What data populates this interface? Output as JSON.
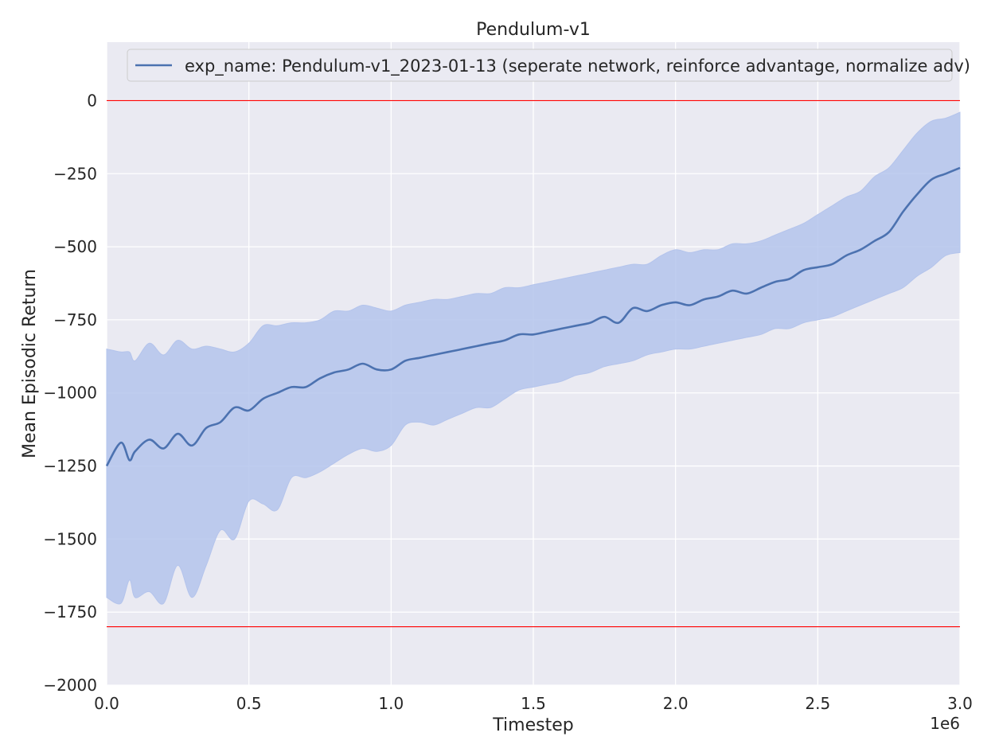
{
  "chart_data": {
    "type": "line",
    "title": "Pendulum-v1",
    "xlabel": "Timestep",
    "ylabel": "Mean Episodic Return",
    "x_offset_label": "1e6",
    "xlim": [
      0,
      3.0
    ],
    "ylim": [
      -2000,
      200
    ],
    "xticks": [
      "0.0",
      "0.5",
      "1.0",
      "1.5",
      "2.0",
      "2.5",
      "3.0"
    ],
    "yticks": [
      "0",
      "−250",
      "−500",
      "−750",
      "−1000",
      "−1250",
      "−1500",
      "−1750",
      "−2000"
    ],
    "grid": true,
    "legend_position": "top-right",
    "colors": {
      "background": "#eaeaf2",
      "line": "#4c72b0",
      "band": "#b4c4ec",
      "reference": "#ff0000"
    },
    "reference_lines": [
      0,
      -1800
    ],
    "series": [
      {
        "name": "exp_name: Pendulum-v1_2023-01-13 (seperate network, reinforce advantage, normalize adv)",
        "x": [
          0.0,
          0.05,
          0.08,
          0.1,
          0.15,
          0.2,
          0.25,
          0.3,
          0.35,
          0.4,
          0.45,
          0.5,
          0.55,
          0.6,
          0.65,
          0.7,
          0.75,
          0.8,
          0.85,
          0.9,
          0.95,
          1.0,
          1.05,
          1.1,
          1.15,
          1.2,
          1.25,
          1.3,
          1.35,
          1.4,
          1.45,
          1.5,
          1.55,
          1.6,
          1.65,
          1.7,
          1.75,
          1.8,
          1.85,
          1.9,
          1.95,
          2.0,
          2.05,
          2.1,
          2.15,
          2.2,
          2.25,
          2.3,
          2.35,
          2.4,
          2.45,
          2.5,
          2.55,
          2.6,
          2.65,
          2.7,
          2.75,
          2.8,
          2.85,
          2.9,
          2.95,
          3.0
        ],
        "mean": [
          -1250,
          -1170,
          -1230,
          -1200,
          -1160,
          -1190,
          -1140,
          -1180,
          -1120,
          -1100,
          -1050,
          -1060,
          -1020,
          -1000,
          -980,
          -980,
          -950,
          -930,
          -920,
          -900,
          -920,
          -920,
          -890,
          -880,
          -870,
          -860,
          -850,
          -840,
          -830,
          -820,
          -800,
          -800,
          -790,
          -780,
          -770,
          -760,
          -740,
          -760,
          -710,
          -720,
          -700,
          -690,
          -700,
          -680,
          -670,
          -650,
          -660,
          -640,
          -620,
          -610,
          -580,
          -570,
          -560,
          -530,
          -510,
          -480,
          -450,
          -380,
          -320,
          -270,
          -250,
          -230
        ],
        "upper": [
          -850,
          -860,
          -860,
          -890,
          -830,
          -870,
          -820,
          -850,
          -840,
          -850,
          -860,
          -830,
          -770,
          -770,
          -760,
          -760,
          -750,
          -720,
          -720,
          -700,
          -710,
          -720,
          -700,
          -690,
          -680,
          -680,
          -670,
          -660,
          -660,
          -640,
          -640,
          -630,
          -620,
          -610,
          -600,
          -590,
          -580,
          -570,
          -560,
          -560,
          -530,
          -510,
          -520,
          -510,
          -510,
          -490,
          -490,
          -480,
          -460,
          -440,
          -420,
          -390,
          -360,
          -330,
          -310,
          -260,
          -230,
          -170,
          -110,
          -70,
          -60,
          -40
        ],
        "lower": [
          -1700,
          -1720,
          -1640,
          -1700,
          -1680,
          -1720,
          -1590,
          -1700,
          -1590,
          -1470,
          -1500,
          -1370,
          -1380,
          -1400,
          -1290,
          -1290,
          -1270,
          -1240,
          -1210,
          -1190,
          -1200,
          -1180,
          -1110,
          -1100,
          -1110,
          -1090,
          -1070,
          -1050,
          -1050,
          -1020,
          -990,
          -980,
          -970,
          -960,
          -940,
          -930,
          -910,
          -900,
          -890,
          -870,
          -860,
          -850,
          -850,
          -840,
          -830,
          -820,
          -810,
          -800,
          -780,
          -780,
          -760,
          -750,
          -740,
          -720,
          -700,
          -680,
          -660,
          -640,
          -600,
          -570,
          -530,
          -520
        ]
      }
    ]
  }
}
